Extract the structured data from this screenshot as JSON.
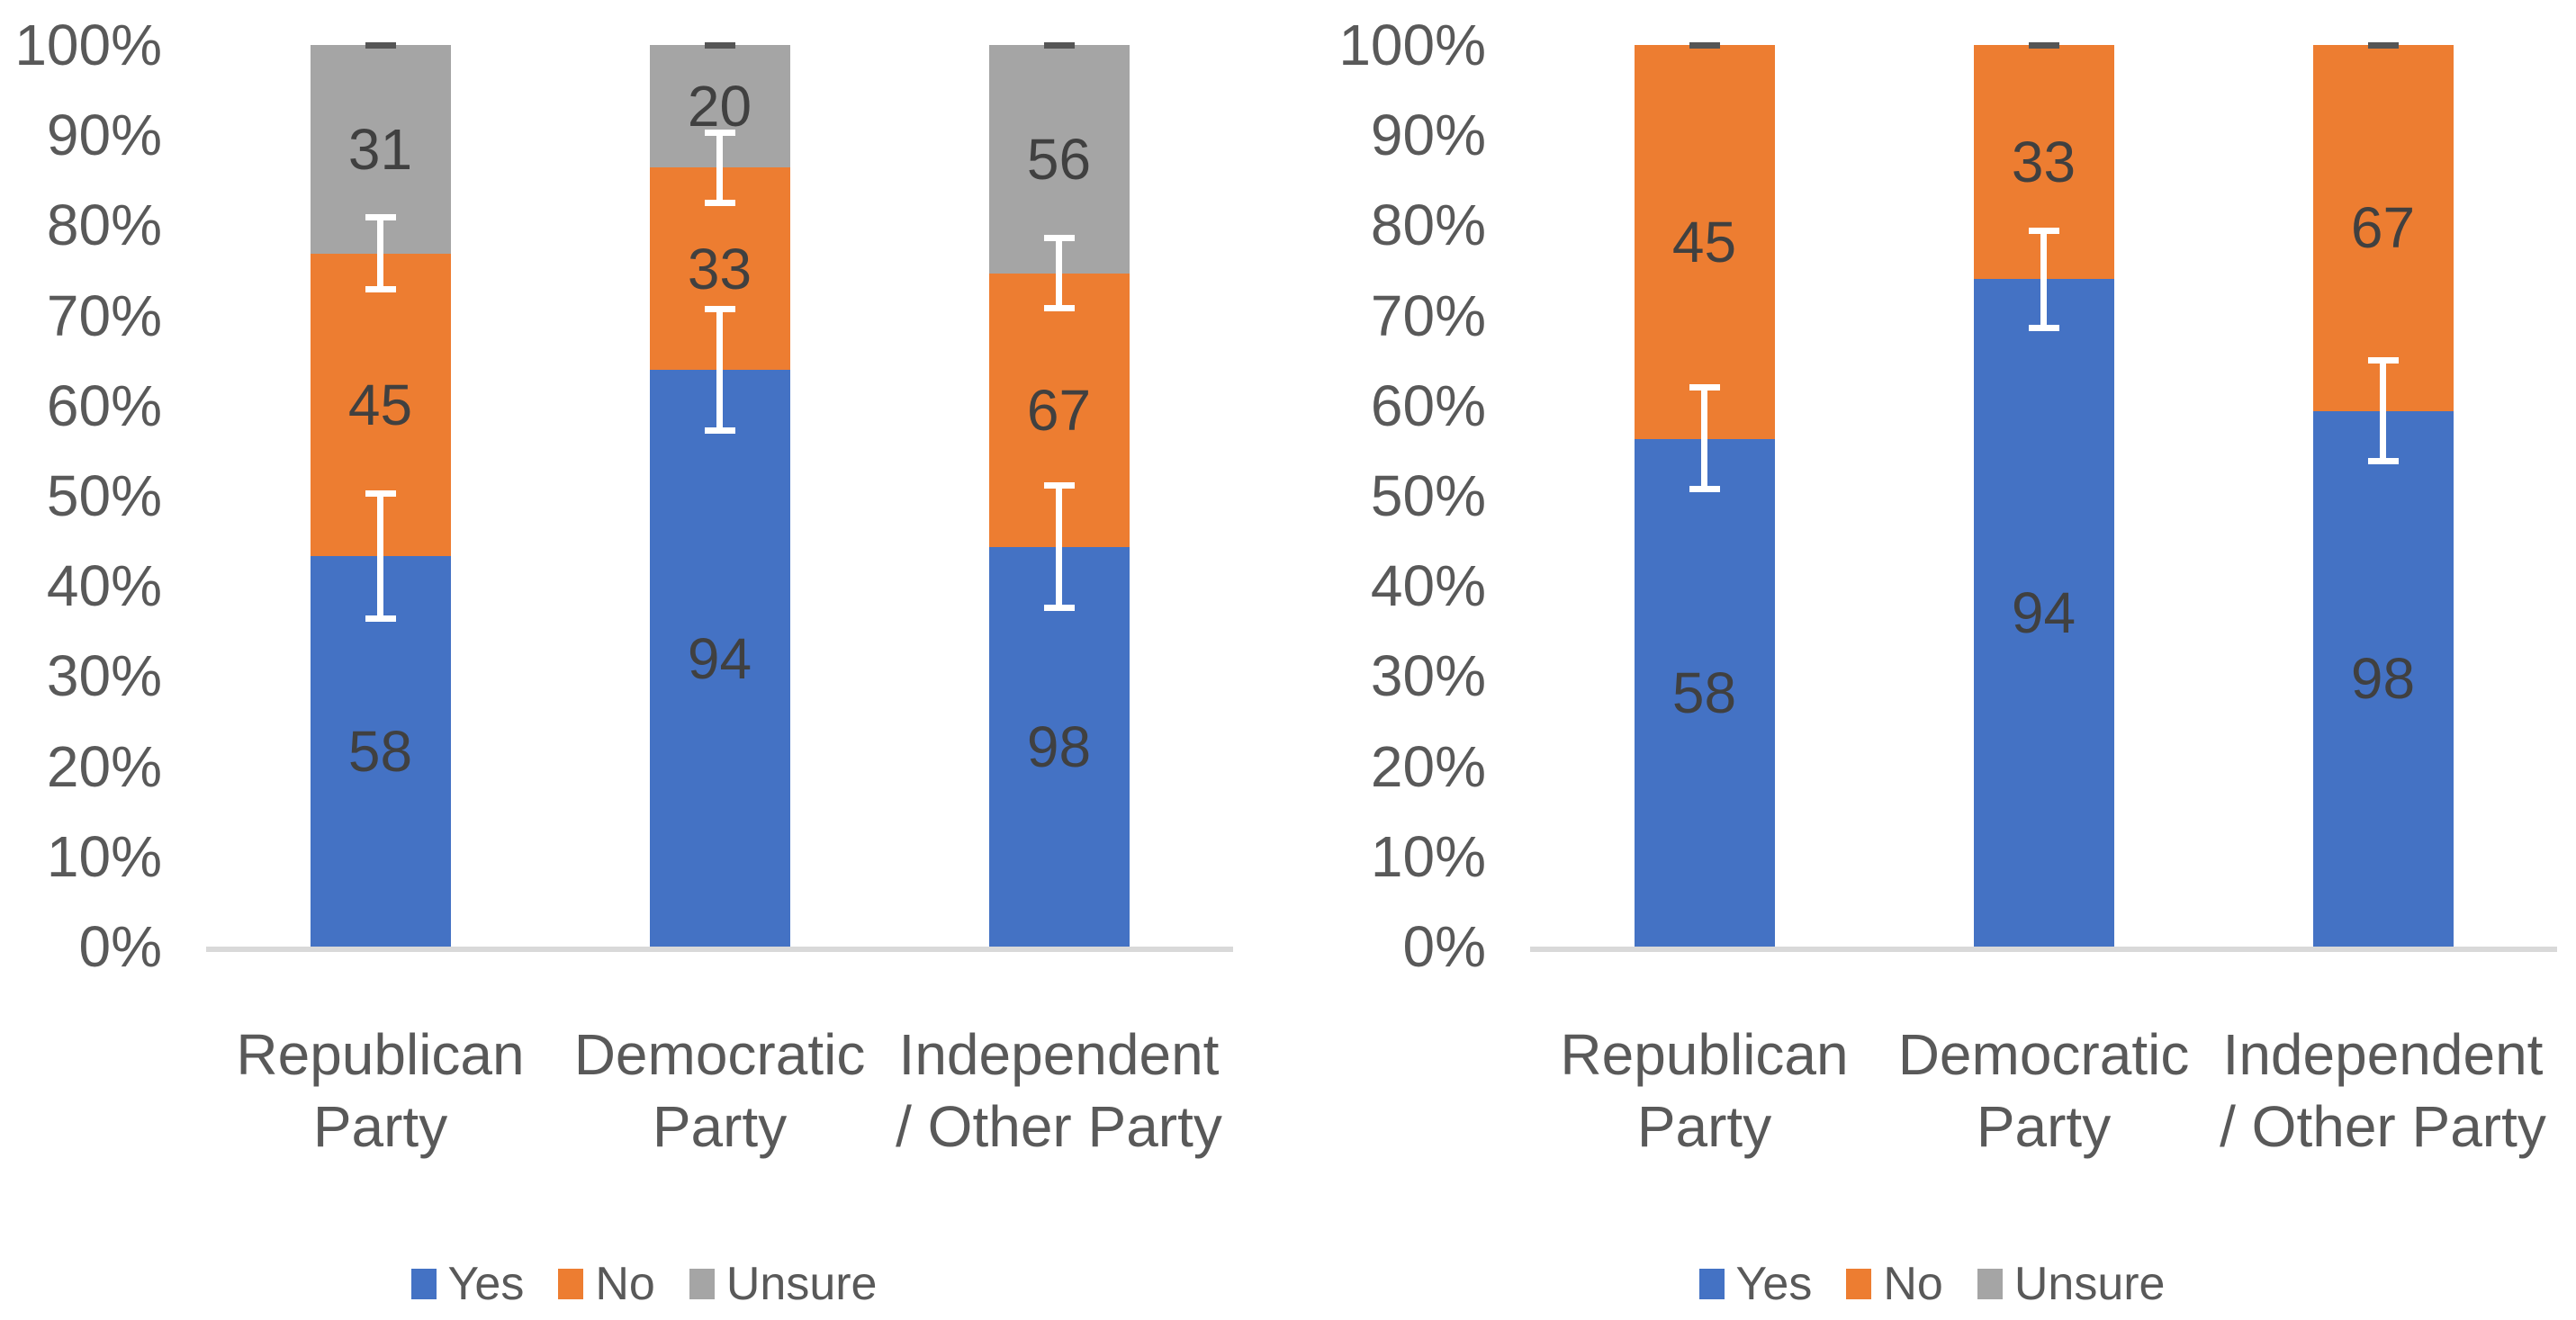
{
  "palette": {
    "yes": "#4472C4",
    "no": "#ED7D31",
    "unsure": "#A5A5A5",
    "axis_line": "#D9D9D9",
    "axis_text": "#595959",
    "data_label_text": "#404040",
    "error_bar_white": "#FFFFFF",
    "error_bar_dark_dash": "#555555",
    "background": "#FFFFFF"
  },
  "axis_ticks": [
    "0%",
    "10%",
    "20%",
    "30%",
    "40%",
    "50%",
    "60%",
    "70%",
    "80%",
    "90%",
    "100%"
  ],
  "legend": {
    "items": [
      {
        "label": "Yes",
        "color": "#4472C4"
      },
      {
        "label": "No",
        "color": "#ED7D31"
      },
      {
        "label": "Unsure",
        "color": "#A5A5A5"
      }
    ]
  },
  "chart_data": [
    {
      "type": "bar",
      "subtype": "stacked-100pct-column",
      "name": "left-chart-yes-no-unsure",
      "title": "",
      "xlabel": "",
      "ylabel": "",
      "ylim": [
        0,
        100
      ],
      "grid": false,
      "legend_position": "bottom",
      "categories": [
        "Republican Party",
        "Democratic Party",
        "Independent / Other Party"
      ],
      "category_lines": [
        [
          "Republican",
          "Party"
        ],
        [
          "Democratic",
          "Party"
        ],
        [
          "Independent",
          "/ Other Party"
        ]
      ],
      "series": [
        {
          "name": "Yes",
          "color": "#4472C4",
          "values": [
            58,
            94,
            98
          ]
        },
        {
          "name": "No",
          "color": "#ED7D31",
          "values": [
            45,
            33,
            67
          ]
        },
        {
          "name": "Unsure",
          "color": "#A5A5A5",
          "values": [
            31,
            20,
            56
          ]
        }
      ],
      "segment_percents": {
        "Yes": [
          43.3,
          63.9,
          44.3
        ],
        "No": [
          33.6,
          22.4,
          30.3
        ],
        "Unsure": [
          23.1,
          13.6,
          25.3
        ]
      },
      "error_bars": [
        {
          "bar": 0,
          "center_pct": 43.3,
          "low_pct": 36.4,
          "high_pct": 50.2,
          "style": "white"
        },
        {
          "bar": 0,
          "center_pct": 76.9,
          "low_pct": 72.9,
          "high_pct": 80.9,
          "style": "white"
        },
        {
          "bar": 0,
          "center_pct": 100,
          "low_pct": 100,
          "high_pct": 100,
          "style": "dark-dash"
        },
        {
          "bar": 1,
          "center_pct": 64.0,
          "low_pct": 57.2,
          "high_pct": 70.7,
          "style": "white"
        },
        {
          "bar": 1,
          "center_pct": 86.4,
          "low_pct": 82.5,
          "high_pct": 90.3,
          "style": "white"
        },
        {
          "bar": 1,
          "center_pct": 100,
          "low_pct": 100,
          "high_pct": 100,
          "style": "dark-dash"
        },
        {
          "bar": 2,
          "center_pct": 44.3,
          "low_pct": 37.6,
          "high_pct": 51.1,
          "style": "white"
        },
        {
          "bar": 2,
          "center_pct": 74.7,
          "low_pct": 70.8,
          "high_pct": 78.6,
          "style": "white"
        },
        {
          "bar": 2,
          "center_pct": 100,
          "low_pct": 100,
          "high_pct": 100,
          "style": "dark-dash"
        }
      ]
    },
    {
      "type": "bar",
      "subtype": "stacked-100pct-column",
      "name": "right-chart-yes-no",
      "title": "",
      "xlabel": "",
      "ylabel": "",
      "ylim": [
        0,
        100
      ],
      "grid": false,
      "legend_position": "bottom",
      "categories": [
        "Republican Party",
        "Democratic Party",
        "Independent / Other Party"
      ],
      "category_lines": [
        [
          "Republican",
          "Party"
        ],
        [
          "Democratic",
          "Party"
        ],
        [
          "Independent",
          "/ Other Party"
        ]
      ],
      "series": [
        {
          "name": "Yes",
          "color": "#4472C4",
          "values": [
            58,
            94,
            98
          ]
        },
        {
          "name": "No",
          "color": "#ED7D31",
          "values": [
            45,
            33,
            67
          ]
        },
        {
          "name": "Unsure",
          "color": "#A5A5A5",
          "values": [
            0,
            0,
            0
          ]
        }
      ],
      "segment_percents": {
        "Yes": [
          56.3,
          74.0,
          59.4
        ],
        "No": [
          43.7,
          26.0,
          40.6
        ],
        "Unsure": [
          0,
          0,
          0
        ]
      },
      "error_bars": [
        {
          "bar": 0,
          "center_pct": 56.3,
          "low_pct": 50.7,
          "high_pct": 62.0,
          "style": "white"
        },
        {
          "bar": 0,
          "center_pct": 100,
          "low_pct": 100,
          "high_pct": 100,
          "style": "dark-dash"
        },
        {
          "bar": 1,
          "center_pct": 74.0,
          "low_pct": 68.6,
          "high_pct": 79.4,
          "style": "white"
        },
        {
          "bar": 1,
          "center_pct": 100,
          "low_pct": 100,
          "high_pct": 100,
          "style": "dark-dash"
        },
        {
          "bar": 2,
          "center_pct": 59.4,
          "low_pct": 53.8,
          "high_pct": 65.0,
          "style": "white"
        },
        {
          "bar": 2,
          "center_pct": 100,
          "low_pct": 100,
          "high_pct": 100,
          "style": "dark-dash"
        }
      ]
    }
  ]
}
